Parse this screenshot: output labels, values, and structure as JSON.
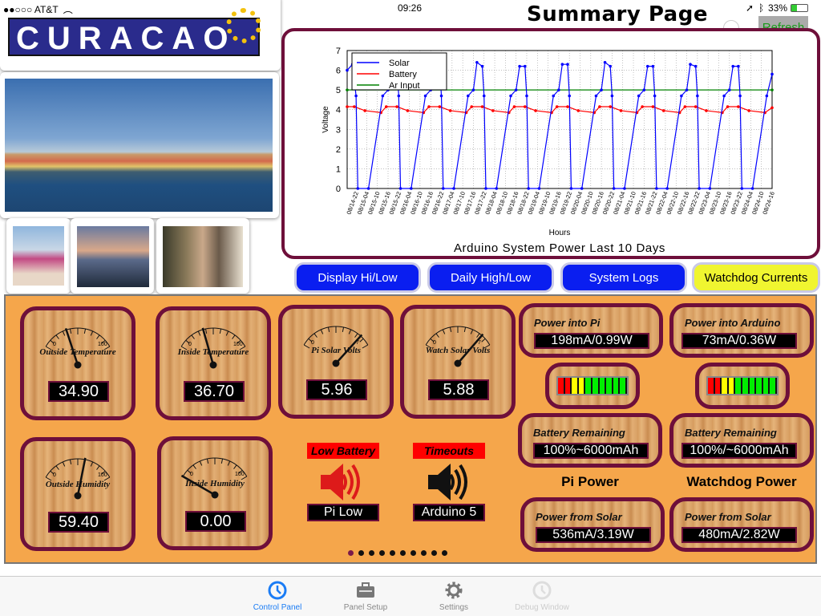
{
  "status_bar": {
    "carrier": "●●○○○ AT&T",
    "time": "09:26",
    "battery": "33%"
  },
  "header": {
    "title": "Summary Page",
    "refresh_label": "Refresh"
  },
  "logo": {
    "text": "CURACAO"
  },
  "chart_data": {
    "type": "line",
    "title": "Arduino System Power Last 10 Days",
    "xlabel": "Hours",
    "ylabel": "Voltage",
    "ylim": [
      0,
      7
    ],
    "yticks": [
      0,
      1,
      2,
      3,
      4,
      5,
      6,
      7
    ],
    "xlim": [
      "08/14-17",
      "08/24-16"
    ],
    "grid": true,
    "legend": "top-left",
    "xticks": [
      "08/14-22",
      "08/15-04",
      "08/15-10",
      "08/15-16",
      "08/15-22",
      "08/16-04",
      "08/16-10",
      "08/16-16",
      "08/16-22",
      "08/17-04",
      "08/17-10",
      "08/17-16",
      "08/17-22",
      "08/18-04",
      "08/18-10",
      "08/18-16",
      "08/18-22",
      "08/19-04",
      "08/19-10",
      "08/19-16",
      "08/19-22",
      "08/20-04",
      "08/20-10",
      "08/20-16",
      "08/20-22",
      "08/21-04",
      "08/21-10",
      "08/21-16",
      "08/21-22",
      "08/22-04",
      "08/22-10",
      "08/22-16",
      "08/22-22",
      "08/23-04",
      "08/23-10",
      "08/23-16",
      "08/23-22",
      "08/24-04",
      "08/24-10",
      "08/24-16"
    ],
    "series": [
      {
        "name": "Solar",
        "color": "#0000ff",
        "points": [
          [
            "08/14-17",
            6.0
          ],
          [
            "08/14-20",
            6.3
          ],
          [
            "08/14-22",
            4.7
          ],
          [
            "08/14-23",
            0
          ],
          [
            "08/15-05",
            0
          ],
          [
            "08/15-13",
            4.7
          ],
          [
            "08/15-16",
            5.0
          ],
          [
            "08/15-18",
            6.2
          ],
          [
            "08/15-21",
            6.2
          ],
          [
            "08/15-22",
            4.7
          ],
          [
            "08/15-23",
            0
          ],
          [
            "08/16-05",
            0
          ],
          [
            "08/16-13",
            4.7
          ],
          [
            "08/16-16",
            5.0
          ],
          [
            "08/16-18",
            6.2
          ],
          [
            "08/16-21",
            6.2
          ],
          [
            "08/16-22",
            4.7
          ],
          [
            "08/16-23",
            0
          ],
          [
            "08/17-05",
            0
          ],
          [
            "08/17-13",
            4.7
          ],
          [
            "08/17-16",
            5.0
          ],
          [
            "08/17-18",
            6.4
          ],
          [
            "08/17-21",
            6.2
          ],
          [
            "08/17-22",
            4.7
          ],
          [
            "08/17-23",
            0
          ],
          [
            "08/18-05",
            0
          ],
          [
            "08/18-13",
            4.7
          ],
          [
            "08/18-16",
            5.0
          ],
          [
            "08/18-18",
            6.2
          ],
          [
            "08/18-21",
            6.2
          ],
          [
            "08/18-22",
            4.7
          ],
          [
            "08/18-23",
            0
          ],
          [
            "08/19-05",
            0
          ],
          [
            "08/19-13",
            4.7
          ],
          [
            "08/19-16",
            5.0
          ],
          [
            "08/19-18",
            6.3
          ],
          [
            "08/19-21",
            6.3
          ],
          [
            "08/19-22",
            4.7
          ],
          [
            "08/19-23",
            0
          ],
          [
            "08/20-05",
            0
          ],
          [
            "08/20-13",
            4.7
          ],
          [
            "08/20-16",
            5.0
          ],
          [
            "08/20-18",
            6.4
          ],
          [
            "08/20-21",
            6.2
          ],
          [
            "08/20-22",
            4.7
          ],
          [
            "08/20-23",
            0
          ],
          [
            "08/21-05",
            0
          ],
          [
            "08/21-13",
            4.7
          ],
          [
            "08/21-16",
            5.0
          ],
          [
            "08/21-18",
            6.2
          ],
          [
            "08/21-21",
            6.2
          ],
          [
            "08/21-22",
            4.7
          ],
          [
            "08/21-23",
            0
          ],
          [
            "08/22-05",
            0
          ],
          [
            "08/22-13",
            4.7
          ],
          [
            "08/22-16",
            5.0
          ],
          [
            "08/22-18",
            6.3
          ],
          [
            "08/22-21",
            6.2
          ],
          [
            "08/22-22",
            4.7
          ],
          [
            "08/22-23",
            0
          ],
          [
            "08/23-05",
            0
          ],
          [
            "08/23-13",
            4.7
          ],
          [
            "08/23-16",
            5.0
          ],
          [
            "08/23-18",
            6.2
          ],
          [
            "08/23-21",
            6.2
          ],
          [
            "08/23-22",
            4.7
          ],
          [
            "08/23-23",
            0
          ],
          [
            "08/24-05",
            0
          ],
          [
            "08/24-13",
            4.7
          ],
          [
            "08/24-16",
            5.8
          ]
        ]
      },
      {
        "name": "Battery",
        "color": "#ff0000",
        "points": [
          [
            "08/14-17",
            4.15
          ],
          [
            "08/14-21",
            4.15
          ],
          [
            "08/15-03",
            3.95
          ],
          [
            "08/15-12",
            3.85
          ],
          [
            "08/15-15",
            4.15
          ],
          [
            "08/15-21",
            4.15
          ],
          [
            "08/16-03",
            3.95
          ],
          [
            "08/16-12",
            3.85
          ],
          [
            "08/16-15",
            4.15
          ],
          [
            "08/16-21",
            4.15
          ],
          [
            "08/17-03",
            3.95
          ],
          [
            "08/17-12",
            3.85
          ],
          [
            "08/17-15",
            4.15
          ],
          [
            "08/17-21",
            4.15
          ],
          [
            "08/18-03",
            3.95
          ],
          [
            "08/18-12",
            3.85
          ],
          [
            "08/18-15",
            4.15
          ],
          [
            "08/18-21",
            4.15
          ],
          [
            "08/19-03",
            3.95
          ],
          [
            "08/19-12",
            3.85
          ],
          [
            "08/19-15",
            4.15
          ],
          [
            "08/19-21",
            4.15
          ],
          [
            "08/20-03",
            3.95
          ],
          [
            "08/20-12",
            3.85
          ],
          [
            "08/20-15",
            4.15
          ],
          [
            "08/20-21",
            4.15
          ],
          [
            "08/21-03",
            3.95
          ],
          [
            "08/21-12",
            3.85
          ],
          [
            "08/21-15",
            4.15
          ],
          [
            "08/21-21",
            4.15
          ],
          [
            "08/22-03",
            3.95
          ],
          [
            "08/22-12",
            3.85
          ],
          [
            "08/22-15",
            4.15
          ],
          [
            "08/22-21",
            4.15
          ],
          [
            "08/23-03",
            3.95
          ],
          [
            "08/23-12",
            3.85
          ],
          [
            "08/23-15",
            4.15
          ],
          [
            "08/23-21",
            4.15
          ],
          [
            "08/24-03",
            3.95
          ],
          [
            "08/24-12",
            3.85
          ],
          [
            "08/24-16",
            4.1
          ]
        ]
      },
      {
        "name": "Ar Input",
        "color": "#008000",
        "points": [
          [
            "08/14-17",
            5.0
          ],
          [
            "08/24-16",
            5.0
          ]
        ]
      }
    ]
  },
  "buttons": [
    {
      "label": "Display Hi/Low",
      "color": "#0a1ef0"
    },
    {
      "label": "Daily High/Low",
      "color": "#0a1ef0"
    },
    {
      "label": "System Logs",
      "color": "#0a1ef0"
    },
    {
      "label": "Watchdog Currents",
      "color": "#f0f530"
    }
  ],
  "gauges": [
    {
      "label": "Outside Temperature",
      "min": "0",
      "max": "100",
      "value": "34.90",
      "level": 34.9,
      "range": 100
    },
    {
      "label": "Inside Temperature",
      "min": "0",
      "max": "100",
      "value": "36.70",
      "level": 36.7,
      "range": 100
    },
    {
      "label": "Pi Solar Volts",
      "min": "0",
      "max": "7",
      "value": "5.96",
      "level": 5.96,
      "range": 7
    },
    {
      "label": "Watch Solar Volts",
      "min": "0",
      "max": "7",
      "value": "5.88",
      "level": 5.88,
      "range": 7
    },
    {
      "label": "Outside Humidity",
      "min": "0",
      "max": "100",
      "value": "59.40",
      "level": 59.4,
      "range": 100
    },
    {
      "label": "Inside Humidity",
      "min": "0",
      "max": "100",
      "value": "0.00",
      "level": 0,
      "range": 100
    }
  ],
  "alerts": [
    {
      "title": "Low Battery",
      "value": "Pi Low",
      "icon": "speaker-icon",
      "color": "#dd1a1a"
    },
    {
      "title": "Timeouts",
      "value": "Arduino 5",
      "icon": "speaker-icon",
      "color": "#111111"
    }
  ],
  "pi": {
    "section": "Pi Power",
    "power_in_label": "Power into Pi",
    "power_in": "198mA/0.99W",
    "battery_label": "Battery Remaining",
    "battery": "100%~6000mAh",
    "battery_level": 100,
    "solar_label": "Power from Solar",
    "solar": "536mA/3.19W"
  },
  "watchdog": {
    "section": "Watchdog Power",
    "power_in_label": "Power into Arduino",
    "power_in": "73mA/0.36W",
    "battery_label": "Battery Remaining",
    "battery": "100%/~6000mAh",
    "battery_level": 100,
    "solar_label": "Power from Solar",
    "solar": "480mA/2.82W"
  },
  "pager": {
    "count": 10,
    "active": 0
  },
  "tabs": [
    {
      "label": "Control Panel",
      "icon": "clock-icon",
      "state": "active"
    },
    {
      "label": "Panel Setup",
      "icon": "toolbox-icon",
      "state": "normal"
    },
    {
      "label": "Settings",
      "icon": "gear-icon",
      "state": "normal"
    },
    {
      "label": "Debug Window",
      "icon": "clock-icon",
      "state": "disabled"
    }
  ]
}
